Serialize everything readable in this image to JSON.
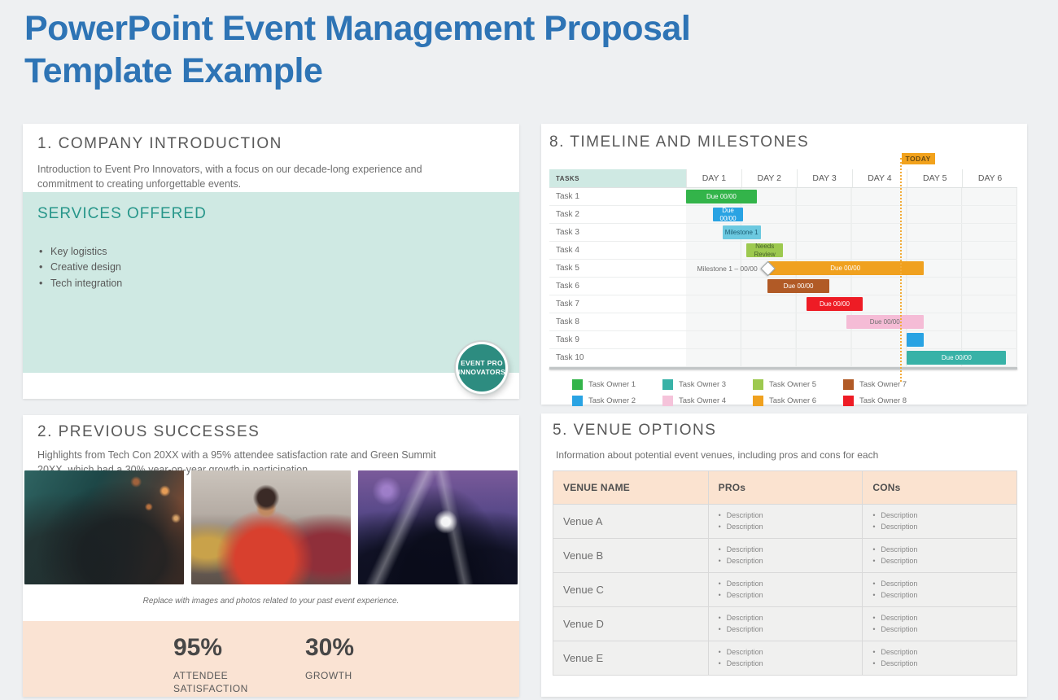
{
  "page": {
    "title_line1": "PowerPoint Event Management Proposal",
    "title_line2": "Template Example",
    "title_color": "#2e74b5",
    "background": "#eef0f2"
  },
  "company_intro": {
    "heading": "1. COMPANY INTRODUCTION",
    "description": "Introduction to Event Pro Innovators, with a focus on our decade-long experience and commitment to creating unforgettable events.",
    "services": {
      "heading": "SERVICES OFFERED",
      "heading_color": "#27968a",
      "panel_color": "#cfe9e3",
      "items": [
        "Key logistics",
        "Creative design",
        "Tech integration"
      ]
    },
    "logo": {
      "line1": "EVENT PRO",
      "line2": "INNOVATORS",
      "color": "#2d8c80"
    }
  },
  "timeline": {
    "heading": "8. TIMELINE AND MILESTONES",
    "tasks_header": "TASKS",
    "tasks_header_bg": "#cfe9e3",
    "columns": [
      "DAY 1",
      "DAY 2",
      "DAY 3",
      "DAY 4",
      "DAY 5",
      "DAY 6"
    ],
    "days_total": 6,
    "today": {
      "label": "TODAY",
      "position_days": 3.87,
      "line_color": "#f3ab38",
      "label_bg": "#f2a21c"
    },
    "tasks": [
      {
        "name": "Task 1",
        "bar": {
          "label": "Due 00/00",
          "start": 0,
          "span": 1.28,
          "color": "#33b44a",
          "text_color": "#ffffff"
        }
      },
      {
        "name": "Task 2",
        "bar": {
          "label": "Due 00/00",
          "start": 0.49,
          "span": 0.54,
          "color": "#29a3e3",
          "text_color": "#ffffff"
        }
      },
      {
        "name": "Task 3",
        "bar": {
          "label": "Milestone 1",
          "start": 0.66,
          "span": 0.69,
          "color": "#6cc9e0",
          "text_color": "#1d5e74"
        }
      },
      {
        "name": "Task 4",
        "bar": {
          "label": "Needs Review",
          "start": 1.09,
          "span": 0.67,
          "color": "#9dc94f",
          "text_color": "#46622a"
        }
      },
      {
        "name": "Task 5",
        "milestone_label": "Milestone 1 – 00/00",
        "has_diamond": true,
        "bar": {
          "label": "Due 00/00",
          "start": 1.47,
          "span": 2.83,
          "color": "#f0a11f",
          "text_color": "#ffffff"
        }
      },
      {
        "name": "Task 6",
        "bar": {
          "label": "Due 00/00",
          "start": 1.47,
          "span": 1.13,
          "color": "#b15a26",
          "text_color": "#ffffff"
        }
      },
      {
        "name": "Task 7",
        "bar": {
          "label": "Due 00/00",
          "start": 2.18,
          "span": 1.02,
          "color": "#ee1c25",
          "text_color": "#ffffff"
        }
      },
      {
        "name": "Task 8",
        "bar": {
          "label": "Due 00/00",
          "start": 2.9,
          "span": 1.4,
          "color": "#f5bcd6",
          "text_color": "#6e6e6e"
        }
      },
      {
        "name": "Task 9",
        "bar": {
          "label": "",
          "start": 3.99,
          "span": 0.31,
          "color": "#29a3e3",
          "text_color": "#ffffff"
        }
      },
      {
        "name": "Task 10",
        "bar": {
          "label": "Due 00/00",
          "start": 4.0,
          "span": 1.8,
          "color": "#38b2a7",
          "text_color": "#ffffff"
        }
      }
    ],
    "legend": [
      {
        "label": "Task Owner 1",
        "color": "#33b44a"
      },
      {
        "label": "Task Owner 2",
        "color": "#29a3e3"
      },
      {
        "label": "Task Owner 3",
        "color": "#38b2a7"
      },
      {
        "label": "Task Owner 4",
        "color": "#f5c3da"
      },
      {
        "label": "Task Owner 5",
        "color": "#9dc94f"
      },
      {
        "label": "Task Owner 6",
        "color": "#f0a11f"
      },
      {
        "label": "Task Owner 7",
        "color": "#b15a26"
      },
      {
        "label": "Task Owner 8",
        "color": "#ee1c25"
      }
    ]
  },
  "previous_successes": {
    "heading": "2. PREVIOUS SUCCESSES",
    "description": "Highlights from Tech Con 20XX with a 95% attendee satisfaction rate and Green Summit 20XX, which had a 30% year-on-year growth in participation.",
    "photos": [
      "concert-crowd-photo",
      "street-festival-photo",
      "stage-lights-photo"
    ],
    "caption": "Replace with images and photos related to your past event experience.",
    "stats_bg": "#fae3d3",
    "stats": [
      {
        "value": "95%",
        "label": "ATTENDEE SATISFACTION"
      },
      {
        "value": "30%",
        "label": "GROWTH"
      }
    ]
  },
  "venue_options": {
    "heading": "5. VENUE OPTIONS",
    "subtitle": "Information about potential event venues, including pros and cons for each",
    "table": {
      "header_bg": "#fbe3d0",
      "headers": [
        "VENUE NAME",
        "PROs",
        "CONs"
      ],
      "rows": [
        {
          "name": "Venue A",
          "pros": [
            "Description",
            "Description"
          ],
          "cons": [
            "Description",
            "Description"
          ]
        },
        {
          "name": "Venue B",
          "pros": [
            "Description",
            "Description"
          ],
          "cons": [
            "Description",
            "Description"
          ]
        },
        {
          "name": "Venue C",
          "pros": [
            "Description",
            "Description"
          ],
          "cons": [
            "Description",
            "Description"
          ]
        },
        {
          "name": "Venue D",
          "pros": [
            "Description",
            "Description"
          ],
          "cons": [
            "Description",
            "Description"
          ]
        },
        {
          "name": "Venue E",
          "pros": [
            "Description",
            "Description"
          ],
          "cons": [
            "Description",
            "Description"
          ]
        }
      ]
    }
  }
}
